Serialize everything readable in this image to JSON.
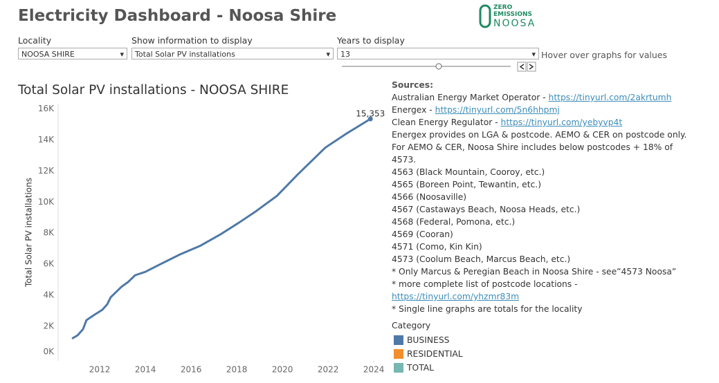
{
  "header": {
    "title": "Electricity Dashboard - Noosa Shire",
    "logo": [
      "ZERO",
      "EMISSIONS",
      "NOOSA"
    ]
  },
  "controls": {
    "locality": {
      "label": "Locality",
      "value": "NOOSA SHIRE"
    },
    "information": {
      "label": "Show information to display",
      "value": "Total Solar PV installations"
    },
    "years": {
      "label": "Years to display",
      "value": "13"
    },
    "hint": "Hover over graphs for values"
  },
  "chart_data": {
    "type": "line",
    "title": "Total Solar PV installations - NOOSA SHIRE",
    "y_label": "Total Solar PV installations",
    "color": "#4e79a7",
    "x": [
      2010.82,
      2011.03,
      2011.27,
      2011.42,
      2011.73,
      2012.12,
      2012.33,
      2012.48,
      2012.94,
      2013.24,
      2013.55,
      2014.0,
      2014.6,
      2015.5,
      2016.42,
      2017.33,
      2018.09,
      2018.85,
      2019.76,
      2020.67,
      2021.88,
      2022.79,
      2023.85
    ],
    "values": [
      1240,
      1420,
      1820,
      2400,
      2710,
      3070,
      3420,
      3870,
      4530,
      4850,
      5290,
      5510,
      5960,
      6620,
      7200,
      7960,
      8670,
      9420,
      10400,
      11780,
      13510,
      14400,
      15353
    ],
    "value_labels": [
      null,
      null,
      null,
      null,
      null,
      null,
      null,
      null,
      null,
      null,
      null,
      null,
      null,
      null,
      null,
      null,
      null,
      null,
      null,
      null,
      null,
      null,
      "15,353"
    ],
    "xlim": [
      2010.18,
      2024.6
    ],
    "xticks": [
      2012,
      2014,
      2016,
      2018,
      2020,
      2022,
      2024
    ],
    "ylim": [
      0,
      16400
    ],
    "yticks": [
      {
        "value": 0,
        "label": "0K"
      },
      {
        "value": 2000,
        "label": "2K"
      },
      {
        "value": 4000,
        "label": "4K"
      },
      {
        "value": 6000,
        "label": "6K"
      },
      {
        "value": 8000,
        "label": "8K"
      },
      {
        "value": 10000,
        "label": "10K"
      },
      {
        "value": 12000,
        "label": "12K"
      },
      {
        "value": 14000,
        "label": "14K"
      },
      {
        "value": 16000,
        "label": "16K"
      }
    ],
    "grid": false
  },
  "sources": {
    "title": "Sources:",
    "lines": [
      {
        "text": "Australian Energy Market Operator - ",
        "link": "https://tinyurl.com/2akrtumh"
      },
      {
        "text": "Energex - ",
        "link": "https://tinyurl.com/5n6hhpmj"
      },
      {
        "text": "Clean Energy Regulator - ",
        "link": "https://tinyurl.com/yebyvp4t"
      },
      {
        "text": "Energex provides on LGA & postcode. AEMO & CER on postcode only."
      },
      {
        "text": "For AEMO & CER, Noosa Shire includes below postcodes + 18% of"
      },
      {
        "text": "4573."
      },
      {
        "text": "4563 (Black Mountain, Cooroy, etc.)"
      },
      {
        "text": "4565 (Boreen Point, Tewantin, etc.)"
      },
      {
        "text": "4566 (Noosaville)"
      },
      {
        "text": "4567 (Castaways Beach, Noosa Heads, etc.)"
      },
      {
        "text": "4568 (Federal, Pomona, etc.)"
      },
      {
        "text": "4569 (Cooran)"
      },
      {
        "text": "4571 (Como, Kin Kin)"
      },
      {
        "text": "4573 (Coolum Beach, Marcus Beach, etc.)"
      },
      {
        "text": "* Only Marcus & Peregian Beach in Noosa Shire - see”4573 Noosa”"
      },
      {
        "text": "* more complete list of postcode locations -"
      },
      {
        "link": "https://tinyurl.com/yhzmr83m"
      },
      {
        "text": "* Single line graphs are totals for the locality"
      }
    ]
  },
  "legend": {
    "title": "Category",
    "items": [
      {
        "name": "BUSINESS",
        "color": "#4e79a7"
      },
      {
        "name": "RESIDENTIAL",
        "color": "#f28e2b"
      },
      {
        "name": "TOTAL",
        "color": "#76b7b2"
      }
    ]
  }
}
